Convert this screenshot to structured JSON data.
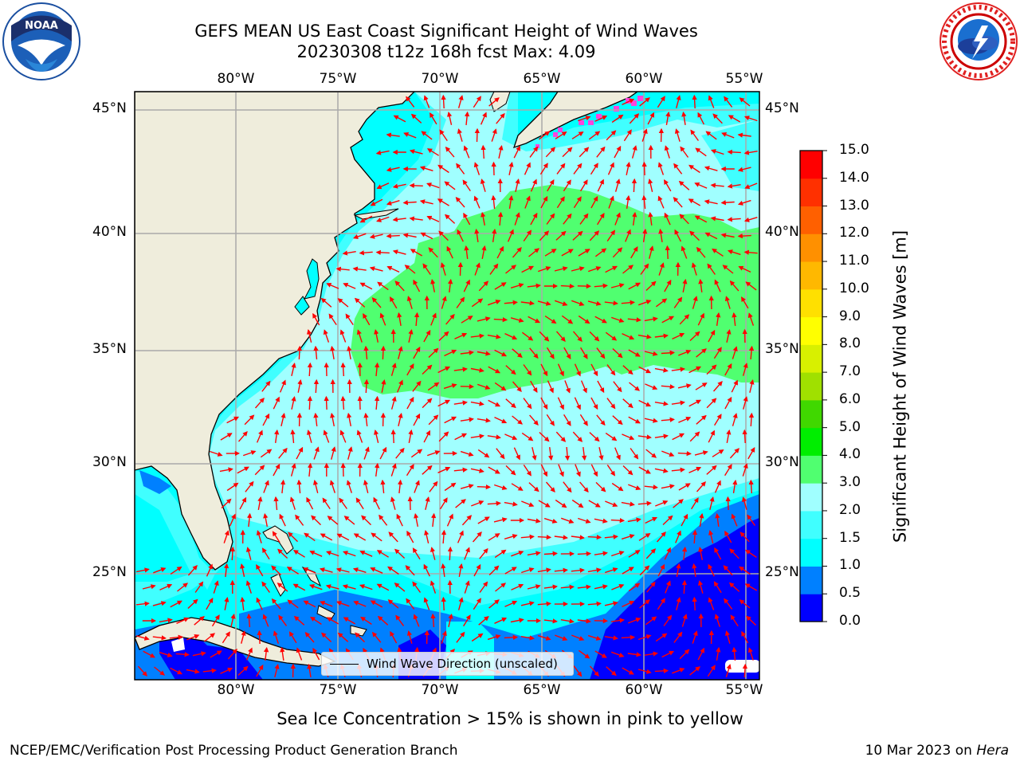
{
  "header": {
    "title_line1": "GEFS MEAN US East Coast Significant Height of Wind Waves",
    "title_line2": "20230308 t12z 168h fcst   Max: 4.09"
  },
  "map": {
    "lon_labels": [
      "80°W",
      "75°W",
      "70°W",
      "65°W",
      "60°W",
      "55°W"
    ],
    "lat_labels": [
      "45°N",
      "40°N",
      "35°N",
      "30°N",
      "25°N"
    ],
    "legend_label": "Wind Wave Direction (unscaled)",
    "arrow_color": "#ff0000",
    "land_color": "#efeddc"
  },
  "colorbar": {
    "title": "Significant Height of Wind Waves [m]",
    "ticks": [
      "0.0",
      "0.5",
      "1.0",
      "1.5",
      "2.0",
      "3.0",
      "4.0",
      "5.0",
      "6.0",
      "7.0",
      "8.0",
      "9.0",
      "10.0",
      "11.0",
      "12.0",
      "13.0",
      "14.0",
      "15.0"
    ],
    "colors": [
      "#0000ff",
      "#0080ff",
      "#00ffff",
      "#40ffff",
      "#a0ffff",
      "#50ff70",
      "#00ee00",
      "#40d800",
      "#a0e000",
      "#d8f000",
      "#ffff00",
      "#ffe000",
      "#ffb800",
      "#ff9000",
      "#ff6000",
      "#ff3000",
      "#ff0000"
    ]
  },
  "notes": {
    "sea_ice": "Sea Ice Concentration > 15% is shown in pink to yellow"
  },
  "footer": {
    "left": "NCEP/EMC/Verification Post Processing Product Generation Branch",
    "date": "10 Mar 2023 on ",
    "host": "Hera"
  }
}
